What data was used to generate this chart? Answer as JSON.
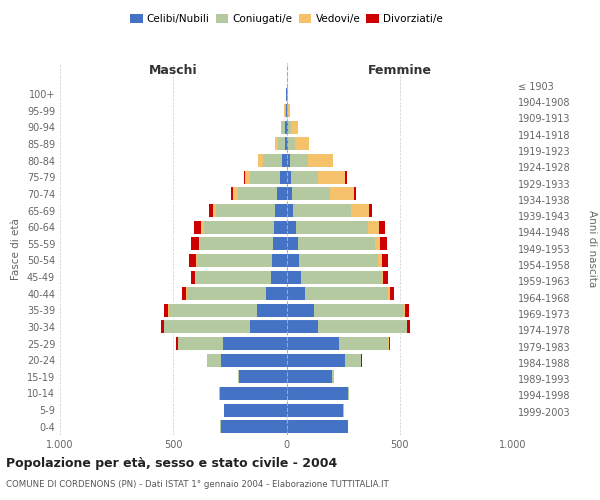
{
  "age_groups": [
    "0-4",
    "5-9",
    "10-14",
    "15-19",
    "20-24",
    "25-29",
    "30-34",
    "35-39",
    "40-44",
    "45-49",
    "50-54",
    "55-59",
    "60-64",
    "65-69",
    "70-74",
    "75-79",
    "80-84",
    "85-89",
    "90-94",
    "95-99",
    "100+"
  ],
  "birth_years": [
    "1999-2003",
    "1994-1998",
    "1989-1993",
    "1984-1988",
    "1979-1983",
    "1974-1978",
    "1969-1973",
    "1964-1968",
    "1959-1963",
    "1954-1958",
    "1949-1953",
    "1944-1948",
    "1939-1943",
    "1934-1938",
    "1929-1933",
    "1924-1928",
    "1919-1923",
    "1914-1918",
    "1909-1913",
    "1904-1908",
    "≤ 1903"
  ],
  "male": {
    "celibi": [
      290,
      275,
      295,
      210,
      290,
      280,
      160,
      130,
      90,
      70,
      65,
      60,
      55,
      50,
      40,
      30,
      20,
      8,
      5,
      3,
      2
    ],
    "coniugati": [
      2,
      2,
      5,
      5,
      60,
      200,
      380,
      390,
      350,
      330,
      330,
      320,
      310,
      260,
      175,
      130,
      85,
      30,
      15,
      5,
      2
    ],
    "vedovi": [
      0,
      0,
      0,
      0,
      1,
      1,
      1,
      2,
      2,
      3,
      5,
      8,
      12,
      15,
      20,
      22,
      20,
      12,
      4,
      1,
      0
    ],
    "divorziati": [
      0,
      0,
      0,
      0,
      2,
      5,
      15,
      20,
      20,
      20,
      30,
      35,
      30,
      15,
      8,
      5,
      2,
      1,
      0,
      0,
      0
    ]
  },
  "female": {
    "nubili": [
      270,
      250,
      270,
      200,
      260,
      230,
      140,
      120,
      80,
      65,
      55,
      50,
      40,
      30,
      25,
      20,
      15,
      8,
      5,
      3,
      2
    ],
    "coniugate": [
      2,
      2,
      5,
      8,
      70,
      220,
      390,
      400,
      370,
      355,
      350,
      340,
      320,
      255,
      165,
      120,
      80,
      30,
      15,
      5,
      2
    ],
    "vedove": [
      0,
      0,
      0,
      0,
      1,
      1,
      2,
      3,
      5,
      8,
      15,
      25,
      50,
      80,
      110,
      120,
      110,
      60,
      30,
      8,
      2
    ],
    "divorziate": [
      0,
      0,
      0,
      0,
      2,
      5,
      12,
      18,
      18,
      18,
      28,
      30,
      25,
      12,
      8,
      5,
      2,
      1,
      0,
      0,
      0
    ]
  },
  "colors": {
    "celibi": "#4472c4",
    "coniugati": "#b5c9a0",
    "vedovi": "#f5c26b",
    "divorziati": "#cc0000"
  },
  "xlim": 1000,
  "title": "Popolazione per età, sesso e stato civile - 2004",
  "subtitle": "COMUNE DI CORDENONS (PN) - Dati ISTAT 1° gennaio 2004 - Elaborazione TUTTITALIA.IT",
  "ylabel_left": "Fasce di età",
  "ylabel_right": "Anni di nascita",
  "xlabel_left": "Maschi",
  "xlabel_right": "Femmine"
}
